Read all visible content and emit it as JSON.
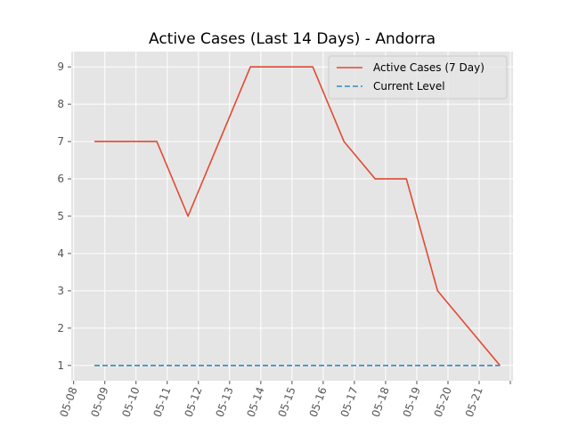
{
  "chart_data": {
    "type": "line",
    "title": "Active Cases (Last 14 Days) - Andorra",
    "xlabel": "",
    "ylabel": "",
    "x": [
      "05-08T16",
      "05-09T16",
      "05-10T16",
      "05-11T16",
      "05-12T16",
      "05-13T16",
      "05-14T16",
      "05-15T16",
      "05-16T16",
      "05-17T16",
      "05-18T16",
      "05-19T16",
      "05-20T16",
      "05-21T16"
    ],
    "x_tick_labels": [
      "05-08",
      "05-09",
      "05-10",
      "05-11",
      "05-12",
      "05-13",
      "05-14",
      "05-15",
      "05-16",
      "05-17",
      "05-18",
      "05-19",
      "05-20",
      "05-21"
    ],
    "ylim": [
      0.59,
      9.41
    ],
    "y_ticks": [
      1,
      2,
      3,
      4,
      5,
      6,
      7,
      8,
      9
    ],
    "grid": true,
    "legend_position": "top-right",
    "series": [
      {
        "name": "Active Cases (7 Day)",
        "values": [
          7,
          7,
          7,
          5,
          7,
          9,
          9,
          9,
          7,
          6,
          6,
          3,
          2,
          1
        ],
        "color": "#E24A33",
        "style": "solid"
      },
      {
        "name": "Current Level",
        "values": [
          1,
          1,
          1,
          1,
          1,
          1,
          1,
          1,
          1,
          1,
          1,
          1,
          1,
          1
        ],
        "color": "#348ABD",
        "style": "dashed"
      }
    ]
  }
}
